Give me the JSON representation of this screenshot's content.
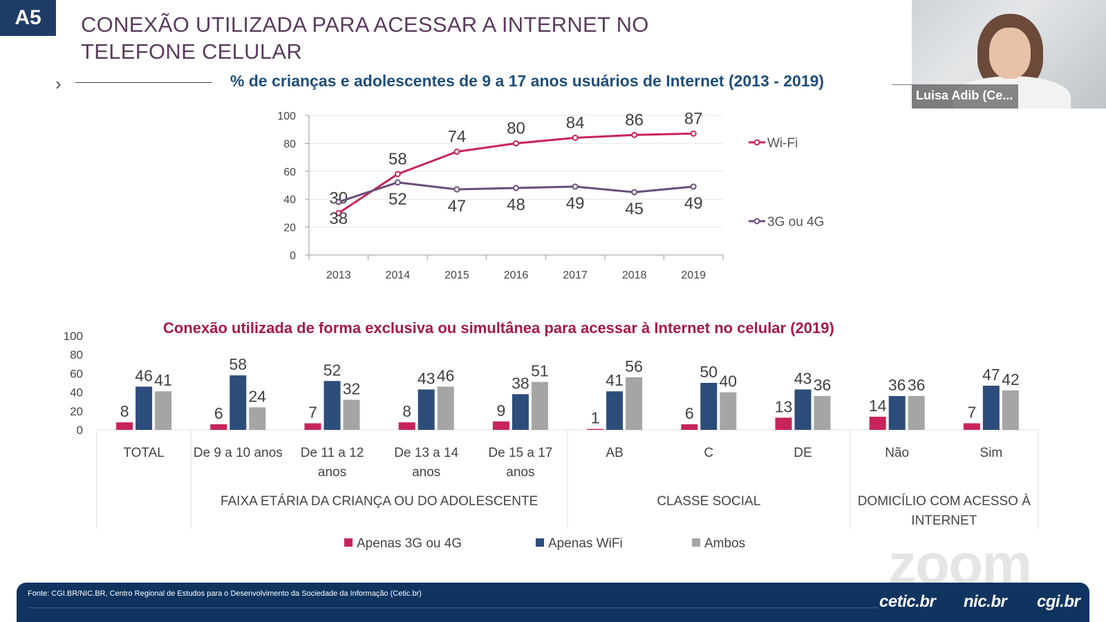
{
  "header": {
    "badge": "A5",
    "title_line1": "CONEXÃO UTILIZADA PARA ACESSAR A INTERNET NO",
    "title_line2": "TELEFONE CELULAR"
  },
  "chart_data": [
    {
      "type": "line",
      "title": "% de crianças e adolescentes de 9 a 17 anos usuários de Internet (2013 - 2019)",
      "x": [
        "2013",
        "2014",
        "2015",
        "2016",
        "2017",
        "2018",
        "2019"
      ],
      "ylim": [
        0,
        100
      ],
      "yticks": [
        0,
        20,
        40,
        60,
        80,
        100
      ],
      "grid": true,
      "legend_position": "right",
      "series": [
        {
          "name": "Wi-Fi",
          "values": [
            30,
            58,
            74,
            80,
            84,
            86,
            87
          ],
          "color": "#c8245a",
          "labels": "above"
        },
        {
          "name": "3G ou 4G",
          "values": [
            38,
            52,
            47,
            48,
            49,
            45,
            49
          ],
          "color": "#6a4c7a",
          "labels": "below"
        }
      ]
    },
    {
      "type": "bar",
      "title": "Conexão utilizada de forma exclusiva ou simultânea para acessar à Internet no celular (2019)",
      "ylim": [
        0,
        100
      ],
      "yticks": [
        0,
        20,
        40,
        60,
        80,
        100
      ],
      "legend_position": "bottom",
      "categories": [
        "TOTAL",
        "De 9 a 10 anos",
        "De 11 a 12 anos",
        "De 13 a 14 anos",
        "De 15 a 17 anos",
        "AB",
        "C",
        "DE",
        "Não",
        "Sim"
      ],
      "category_lines": [
        [
          "TOTAL"
        ],
        [
          "De 9 a 10 anos"
        ],
        [
          "De 11 a 12",
          "anos"
        ],
        [
          "De 13 a 14",
          "anos"
        ],
        [
          "De 15 a 17",
          "anos"
        ],
        [
          "AB"
        ],
        [
          "C"
        ],
        [
          "DE"
        ],
        [
          "Não"
        ],
        [
          "Sim"
        ]
      ],
      "groups": [
        {
          "lines": [
            "FAIXA ETÁRIA DA CRIANÇA OU DO ADOLESCENTE"
          ],
          "start": 1,
          "end": 4
        },
        {
          "lines": [
            "CLASSE SOCIAL"
          ],
          "start": 5,
          "end": 7
        },
        {
          "lines": [
            "DOMICÍLIO COM ACESSO À",
            "INTERNET"
          ],
          "start": 8,
          "end": 9
        }
      ],
      "series": [
        {
          "name": "Apenas 3G ou 4G",
          "color": "#c8245a",
          "values": [
            8,
            6,
            7,
            8,
            9,
            1,
            6,
            13,
            14,
            7
          ]
        },
        {
          "name": "Apenas WiFi",
          "color": "#2c4d7a",
          "values": [
            46,
            58,
            52,
            43,
            38,
            41,
            50,
            43,
            36,
            47
          ]
        },
        {
          "name": "Ambos",
          "color": "#a5a5a5",
          "values": [
            41,
            24,
            32,
            46,
            51,
            56,
            40,
            36,
            36,
            42
          ]
        }
      ]
    }
  ],
  "webcam": {
    "name": "Luisa Adib (Ce..."
  },
  "footer": {
    "source": "Fonte: CGI.BR/NIC.BR, Centro Regional de Estudos para o Desenvolvimento da Sociedade da Informação (Cetic.br)",
    "logo_cetic": "cetic.br",
    "logo_nic": "nic.br",
    "logo_cgi": "cgi.br"
  },
  "watermark": "zoom"
}
